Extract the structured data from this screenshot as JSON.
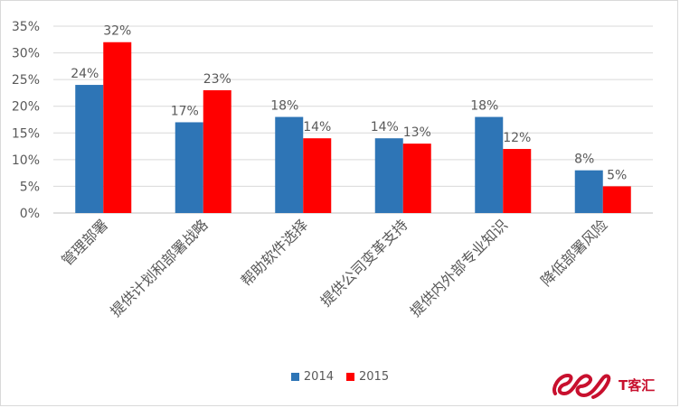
{
  "chart_data": {
    "type": "bar",
    "categories": [
      "管理部署",
      "提供计划和部署战略",
      "帮助软件选择",
      "提供公司变革支持",
      "提供内外部专业知识",
      "降低部署风险"
    ],
    "series": [
      {
        "name": "2014",
        "values": [
          24,
          17,
          18,
          14,
          18,
          8
        ],
        "color": "#2e75b6"
      },
      {
        "name": "2015",
        "values": [
          32,
          23,
          14,
          13,
          12,
          5
        ],
        "color": "#ff0000"
      }
    ],
    "data_labels": {
      "2014": [
        "24%",
        "17%",
        "18%",
        "14%",
        "18%",
        "8%"
      ],
      "2015": [
        "32%",
        "23%",
        "14%",
        "13%",
        "12%",
        "5%"
      ]
    },
    "y_ticks": [
      "0%",
      "5%",
      "10%",
      "15%",
      "20%",
      "25%",
      "30%",
      "35%"
    ],
    "ylim": [
      0,
      35
    ],
    "grid": true,
    "legend_position": "bottom"
  },
  "legend": {
    "items": [
      {
        "label": "2014",
        "color": "#2e75b6"
      },
      {
        "label": "2015",
        "color": "#ff0000"
      }
    ]
  },
  "watermark": {
    "text": "T客汇",
    "logo_icon": "ee-script-logo-icon",
    "color": "#c8102e"
  }
}
